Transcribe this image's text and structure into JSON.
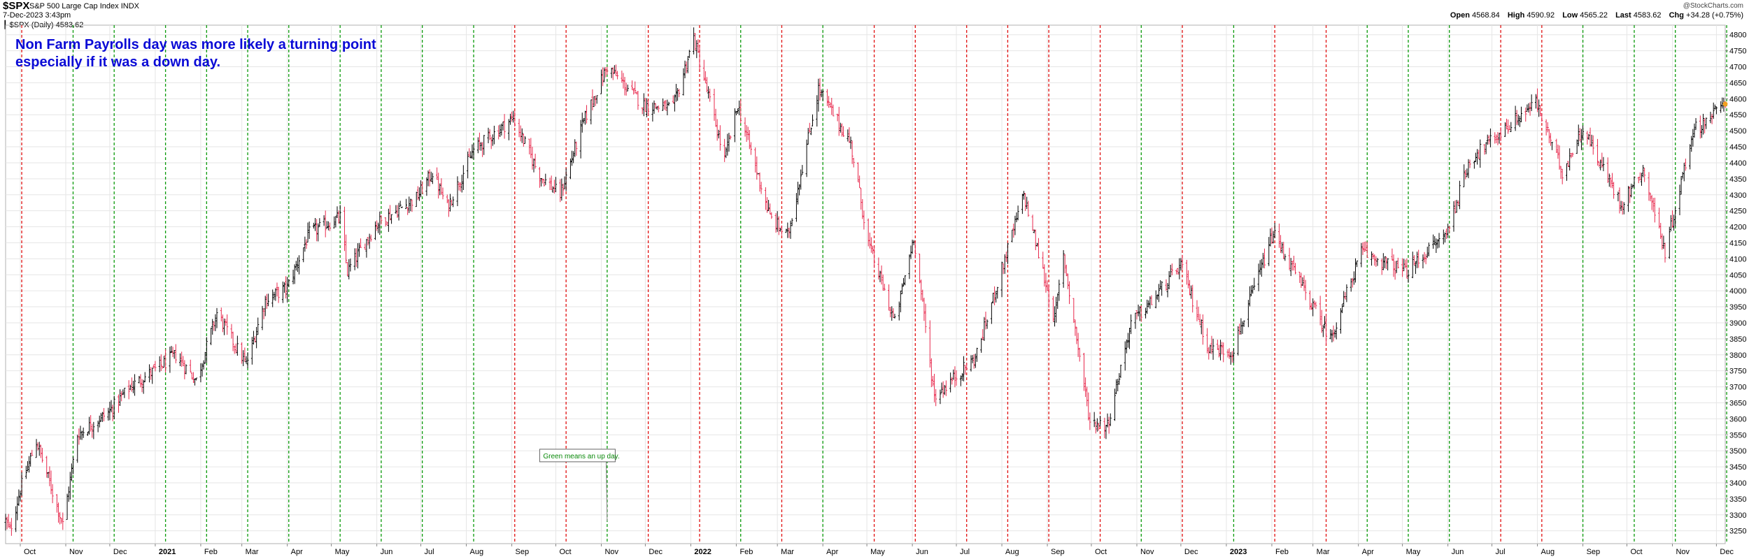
{
  "header": {
    "symbol": "$SPX",
    "name": "S&P 500 Large Cap Index",
    "exchange": "INDX",
    "datetime": "7-Dec-2023 3:43pm",
    "legend": "$SPX (Daily) 4583.62",
    "legend_icon": "bar-chart-icon",
    "brand": "@StockCharts.com",
    "ohlc": [
      {
        "label": "Open",
        "value": "4568.84"
      },
      {
        "label": "High",
        "value": "4590.92"
      },
      {
        "label": "Low",
        "value": "4565.22"
      },
      {
        "label": "Last",
        "value": "4583.62"
      },
      {
        "label": "Chg",
        "value": "+34.28 (+0.75%)"
      }
    ]
  },
  "annotation": {
    "title_lines": [
      "Non Farm Payrolls day was more likely a turning point",
      "especially if it was a down day."
    ],
    "callout": "Green means an up day."
  },
  "colors": {
    "up_bar": "#000000",
    "down_bar": "#e8284c",
    "green_line": "#0a9a0a",
    "red_line": "#e11010",
    "annotation_text": "#0a0ad6",
    "grid": "#e6e6e6"
  },
  "chart_data": {
    "type": "ohlc",
    "symbol": "$SPX",
    "period": "Daily",
    "x_range": [
      "2020-09-21",
      "2023-12-07"
    ],
    "ylim": [
      3210,
      4830
    ],
    "y_ticks": [
      3250,
      3300,
      3350,
      3400,
      3450,
      3500,
      3550,
      3600,
      3650,
      3700,
      3750,
      3800,
      3850,
      3900,
      3950,
      4000,
      4050,
      4100,
      4150,
      4200,
      4250,
      4300,
      4350,
      4400,
      4450,
      4500,
      4550,
      4600,
      4650,
      4700,
      4750,
      4800
    ],
    "y_axis_side": "right",
    "grid": true,
    "x_axis_labels": [
      {
        "label": "Oct",
        "date": "2020-10-01",
        "bold": false
      },
      {
        "label": "Nov",
        "date": "2020-11-01",
        "bold": false
      },
      {
        "label": "Dec",
        "date": "2020-12-01",
        "bold": false
      },
      {
        "label": "2021",
        "date": "2021-01-01",
        "bold": true
      },
      {
        "label": "Feb",
        "date": "2021-02-01",
        "bold": false
      },
      {
        "label": "Mar",
        "date": "2021-03-01",
        "bold": false
      },
      {
        "label": "Apr",
        "date": "2021-04-01",
        "bold": false
      },
      {
        "label": "May",
        "date": "2021-05-01",
        "bold": false
      },
      {
        "label": "Jun",
        "date": "2021-06-01",
        "bold": false
      },
      {
        "label": "Jul",
        "date": "2021-07-01",
        "bold": false
      },
      {
        "label": "Aug",
        "date": "2021-08-01",
        "bold": false
      },
      {
        "label": "Sep",
        "date": "2021-09-01",
        "bold": false
      },
      {
        "label": "Oct",
        "date": "2021-10-01",
        "bold": false
      },
      {
        "label": "Nov",
        "date": "2021-11-01",
        "bold": false
      },
      {
        "label": "Dec",
        "date": "2021-12-01",
        "bold": false
      },
      {
        "label": "2022",
        "date": "2022-01-01",
        "bold": true
      },
      {
        "label": "Feb",
        "date": "2022-02-01",
        "bold": false
      },
      {
        "label": "Mar",
        "date": "2022-03-01",
        "bold": false
      },
      {
        "label": "Apr",
        "date": "2022-04-01",
        "bold": false
      },
      {
        "label": "May",
        "date": "2022-05-01",
        "bold": false
      },
      {
        "label": "Jun",
        "date": "2022-06-01",
        "bold": false
      },
      {
        "label": "Jul",
        "date": "2022-07-01",
        "bold": false
      },
      {
        "label": "Aug",
        "date": "2022-08-01",
        "bold": false
      },
      {
        "label": "Sep",
        "date": "2022-09-01",
        "bold": false
      },
      {
        "label": "Oct",
        "date": "2022-10-01",
        "bold": false
      },
      {
        "label": "Nov",
        "date": "2022-11-01",
        "bold": false
      },
      {
        "label": "Dec",
        "date": "2022-12-01",
        "bold": false
      },
      {
        "label": "2023",
        "date": "2023-01-01",
        "bold": true
      },
      {
        "label": "Feb",
        "date": "2023-02-01",
        "bold": false
      },
      {
        "label": "Mar",
        "date": "2023-03-01",
        "bold": false
      },
      {
        "label": "Apr",
        "date": "2023-04-01",
        "bold": false
      },
      {
        "label": "May",
        "date": "2023-05-01",
        "bold": false
      },
      {
        "label": "Jun",
        "date": "2023-06-01",
        "bold": false
      },
      {
        "label": "Jul",
        "date": "2023-07-01",
        "bold": false
      },
      {
        "label": "Aug",
        "date": "2023-08-01",
        "bold": false
      },
      {
        "label": "Sep",
        "date": "2023-09-01",
        "bold": false
      },
      {
        "label": "Oct",
        "date": "2023-10-01",
        "bold": false
      },
      {
        "label": "Nov",
        "date": "2023-11-01",
        "bold": false
      },
      {
        "label": "Dec",
        "date": "2023-12-01",
        "bold": false
      }
    ],
    "payroll_days": [
      {
        "date": "2020-10-02",
        "dir": "down"
      },
      {
        "date": "2020-11-06",
        "dir": "up"
      },
      {
        "date": "2020-12-04",
        "dir": "up"
      },
      {
        "date": "2021-01-08",
        "dir": "up"
      },
      {
        "date": "2021-02-05",
        "dir": "up"
      },
      {
        "date": "2021-03-05",
        "dir": "up"
      },
      {
        "date": "2021-04-02",
        "dir": "up"
      },
      {
        "date": "2021-05-07",
        "dir": "up"
      },
      {
        "date": "2021-06-04",
        "dir": "up"
      },
      {
        "date": "2021-07-02",
        "dir": "up"
      },
      {
        "date": "2021-08-06",
        "dir": "up"
      },
      {
        "date": "2021-09-03",
        "dir": "down"
      },
      {
        "date": "2021-10-08",
        "dir": "down"
      },
      {
        "date": "2021-11-05",
        "dir": "up"
      },
      {
        "date": "2021-12-03",
        "dir": "down"
      },
      {
        "date": "2022-01-07",
        "dir": "down"
      },
      {
        "date": "2022-02-04",
        "dir": "up"
      },
      {
        "date": "2022-03-04",
        "dir": "down"
      },
      {
        "date": "2022-04-01",
        "dir": "up"
      },
      {
        "date": "2022-05-06",
        "dir": "down"
      },
      {
        "date": "2022-06-03",
        "dir": "down"
      },
      {
        "date": "2022-07-08",
        "dir": "down"
      },
      {
        "date": "2022-08-05",
        "dir": "down"
      },
      {
        "date": "2022-09-02",
        "dir": "down"
      },
      {
        "date": "2022-10-07",
        "dir": "down"
      },
      {
        "date": "2022-11-04",
        "dir": "up"
      },
      {
        "date": "2022-12-02",
        "dir": "down"
      },
      {
        "date": "2023-01-06",
        "dir": "up"
      },
      {
        "date": "2023-02-03",
        "dir": "down"
      },
      {
        "date": "2023-03-10",
        "dir": "down"
      },
      {
        "date": "2023-04-07",
        "dir": "up"
      },
      {
        "date": "2023-05-05",
        "dir": "up"
      },
      {
        "date": "2023-06-02",
        "dir": "up"
      },
      {
        "date": "2023-07-07",
        "dir": "down"
      },
      {
        "date": "2023-08-04",
        "dir": "down"
      },
      {
        "date": "2023-09-01",
        "dir": "up"
      },
      {
        "date": "2023-10-06",
        "dir": "up"
      },
      {
        "date": "2023-11-03",
        "dir": "up"
      },
      {
        "date": "2023-12-08",
        "dir": "up"
      }
    ],
    "close_path": [
      {
        "date": "2020-09-21",
        "close": 3280
      },
      {
        "date": "2020-09-24",
        "close": 3250
      },
      {
        "date": "2020-10-01",
        "close": 3380
      },
      {
        "date": "2020-10-12",
        "close": 3530
      },
      {
        "date": "2020-10-19",
        "close": 3430
      },
      {
        "date": "2020-10-30",
        "close": 3270
      },
      {
        "date": "2020-11-09",
        "close": 3550
      },
      {
        "date": "2020-11-30",
        "close": 3620
      },
      {
        "date": "2020-12-15",
        "close": 3700
      },
      {
        "date": "2020-12-31",
        "close": 3750
      },
      {
        "date": "2021-01-15",
        "close": 3800
      },
      {
        "date": "2021-01-29",
        "close": 3720
      },
      {
        "date": "2021-02-12",
        "close": 3930
      },
      {
        "date": "2021-03-04",
        "close": 3770
      },
      {
        "date": "2021-03-17",
        "close": 3970
      },
      {
        "date": "2021-04-01",
        "close": 4010
      },
      {
        "date": "2021-04-16",
        "close": 4180
      },
      {
        "date": "2021-05-07",
        "close": 4230
      },
      {
        "date": "2021-05-12",
        "close": 4060
      },
      {
        "date": "2021-06-01",
        "close": 4210
      },
      {
        "date": "2021-06-28",
        "close": 4290
      },
      {
        "date": "2021-07-09",
        "close": 4370
      },
      {
        "date": "2021-07-19",
        "close": 4260
      },
      {
        "date": "2021-08-06",
        "close": 4440
      },
      {
        "date": "2021-09-02",
        "close": 4540
      },
      {
        "date": "2021-09-20",
        "close": 4360
      },
      {
        "date": "2021-10-04",
        "close": 4300
      },
      {
        "date": "2021-10-20",
        "close": 4530
      },
      {
        "date": "2021-11-05",
        "close": 4700
      },
      {
        "date": "2021-11-30",
        "close": 4580
      },
      {
        "date": "2021-12-20",
        "close": 4570
      },
      {
        "date": "2022-01-03",
        "close": 4790
      },
      {
        "date": "2022-01-24",
        "close": 4410
      },
      {
        "date": "2022-02-02",
        "close": 4580
      },
      {
        "date": "2022-02-24",
        "close": 4230
      },
      {
        "date": "2022-03-08",
        "close": 4170
      },
      {
        "date": "2022-03-29",
        "close": 4630
      },
      {
        "date": "2022-04-20",
        "close": 4460
      },
      {
        "date": "2022-05-02",
        "close": 4150
      },
      {
        "date": "2022-05-20",
        "close": 3900
      },
      {
        "date": "2022-06-02",
        "close": 4170
      },
      {
        "date": "2022-06-16",
        "close": 3670
      },
      {
        "date": "2022-07-14",
        "close": 3790
      },
      {
        "date": "2022-08-16",
        "close": 4300
      },
      {
        "date": "2022-09-06",
        "close": 3910
      },
      {
        "date": "2022-09-12",
        "close": 4110
      },
      {
        "date": "2022-09-30",
        "close": 3590
      },
      {
        "date": "2022-10-12",
        "close": 3580
      },
      {
        "date": "2022-10-28",
        "close": 3900
      },
      {
        "date": "2022-11-10",
        "close": 3960
      },
      {
        "date": "2022-12-01",
        "close": 4080
      },
      {
        "date": "2022-12-20",
        "close": 3820
      },
      {
        "date": "2023-01-05",
        "close": 3810
      },
      {
        "date": "2023-02-02",
        "close": 4180
      },
      {
        "date": "2023-03-13",
        "close": 3850
      },
      {
        "date": "2023-04-03",
        "close": 4120
      },
      {
        "date": "2023-05-04",
        "close": 4060
      },
      {
        "date": "2023-05-31",
        "close": 4180
      },
      {
        "date": "2023-06-16",
        "close": 4410
      },
      {
        "date": "2023-07-31",
        "close": 4590
      },
      {
        "date": "2023-08-18",
        "close": 4370
      },
      {
        "date": "2023-09-01",
        "close": 4510
      },
      {
        "date": "2023-09-27",
        "close": 4270
      },
      {
        "date": "2023-10-12",
        "close": 4380
      },
      {
        "date": "2023-10-27",
        "close": 4120
      },
      {
        "date": "2023-11-15",
        "close": 4500
      },
      {
        "date": "2023-12-07",
        "close": 4583.62
      }
    ]
  }
}
